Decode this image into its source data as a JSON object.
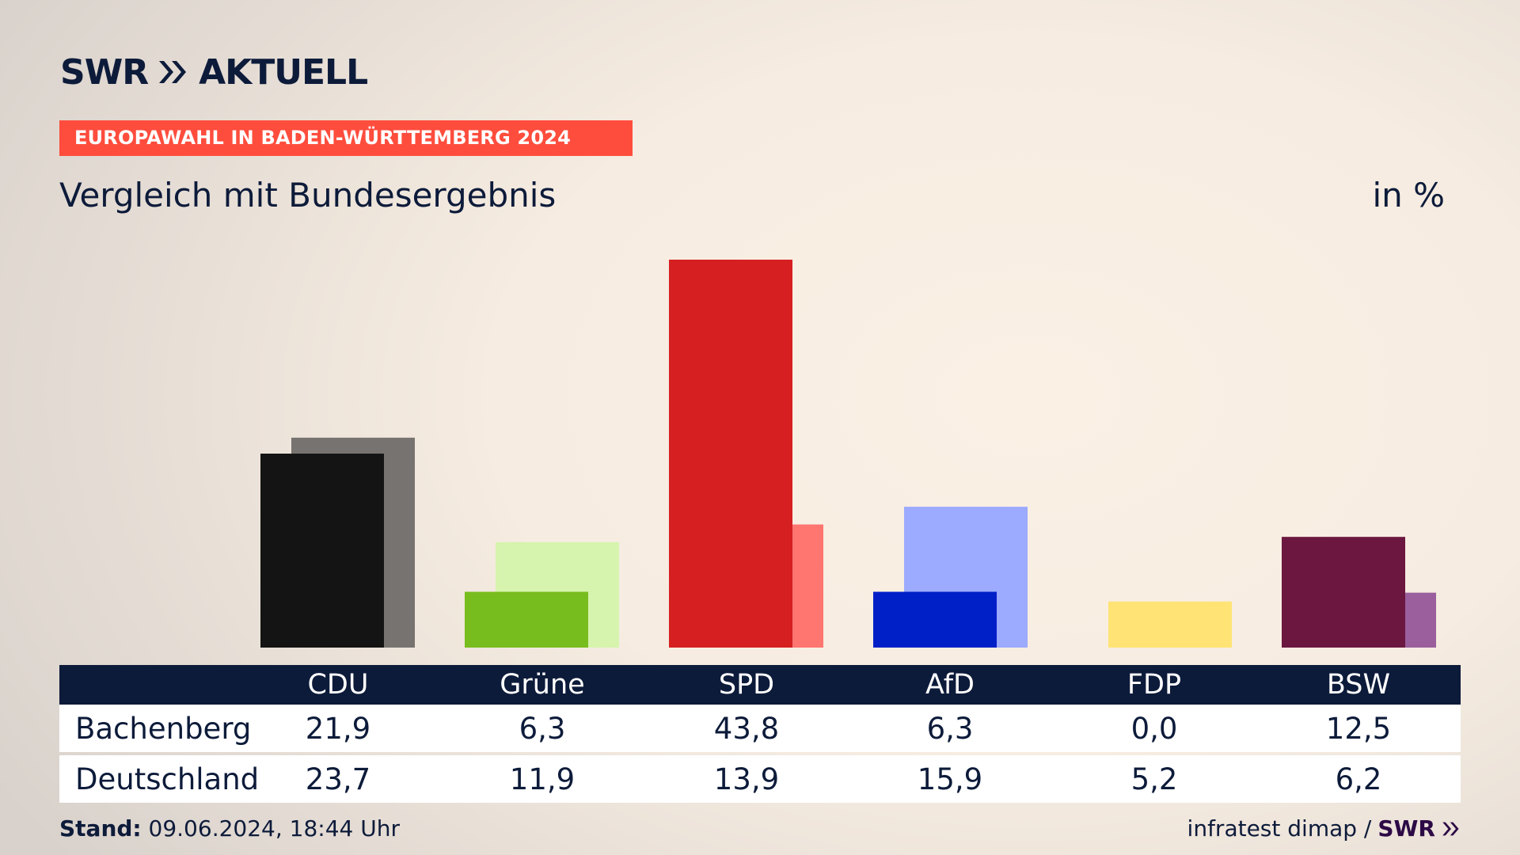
{
  "brand": {
    "logo_text": "SWR",
    "logo_suffix": "AKTUELL",
    "logo_icon": "double-chevron-icon"
  },
  "header": {
    "kicker": "EUROPAWAHL IN BADEN-WÜRTTEMBERG 2024",
    "kicker_color": "#ff4d3d",
    "title": "Vergleich mit Bundesergebnis",
    "unit": "in %"
  },
  "chart_data": {
    "type": "bar",
    "title": "Vergleich mit Bundesergebnis",
    "unit": "in %",
    "categories": [
      "CDU",
      "Grüne",
      "SPD",
      "AfD",
      "FDP",
      "BSW"
    ],
    "series": [
      {
        "name": "Bachenberg",
        "values": [
          21.9,
          6.3,
          43.8,
          6.3,
          0.0,
          12.5
        ],
        "colors": [
          "#141414",
          "#78bd1e",
          "#d61f20",
          "#0020c7",
          "#ffe06e",
          "#6b173f"
        ]
      },
      {
        "name": "Deutschland",
        "values": [
          23.7,
          11.9,
          13.9,
          15.9,
          5.2,
          6.2
        ],
        "colors": [
          "#767370",
          "#d6f4ad",
          "#ff7570",
          "#9caaff",
          "#ffe375",
          "#9a5f9c"
        ]
      }
    ],
    "ylim": [
      0,
      43.8
    ],
    "grid": false,
    "legend": "table-below"
  },
  "table": {
    "headers": [
      "CDU",
      "Grüne",
      "SPD",
      "AfD",
      "FDP",
      "BSW"
    ],
    "rows": [
      {
        "label": "Bachenberg",
        "values": [
          "21,9",
          "6,3",
          "43,8",
          "6,3",
          "0,0",
          "12,5"
        ]
      },
      {
        "label": "Deutschland",
        "values": [
          "23,7",
          "11,9",
          "13,9",
          "15,9",
          "5,2",
          "6,2"
        ]
      }
    ]
  },
  "footer": {
    "stand_label": "Stand:",
    "stand_value": "09.06.2024, 18:44 Uhr",
    "source": "infratest dimap /",
    "source_brand": "SWR"
  }
}
